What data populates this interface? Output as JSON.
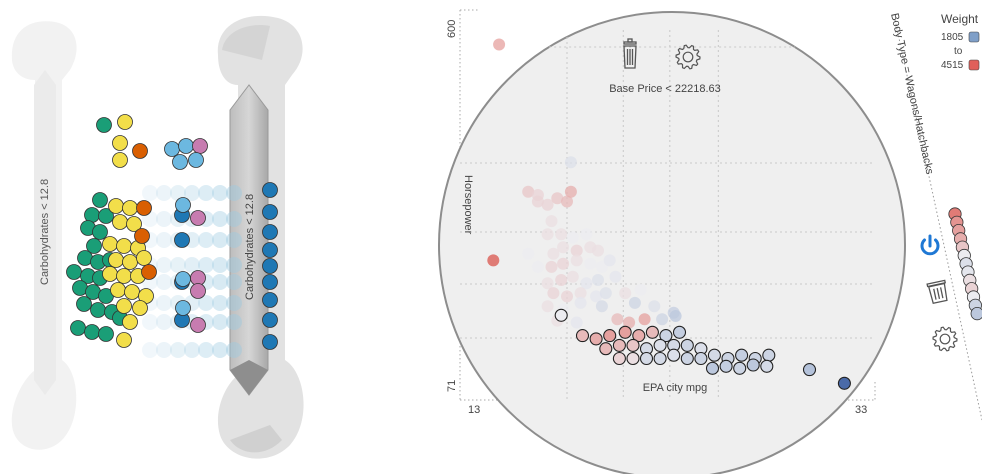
{
  "left_panel": {
    "filter_label": "Carbohydrates < 12.8",
    "ghost_label": "Carbohydrates < 12.8",
    "group_colors": {
      "green": "#1a9e77",
      "yellow": "#f2de4a",
      "orange": "#d95f02",
      "light_blue": "#6cb8e0",
      "pink": "#c77cb0",
      "blue": "#1f78b4"
    }
  },
  "scatter": {
    "x_min_label": "13",
    "x_max_label": "33",
    "y_max_label": "600",
    "y_min_label": "71",
    "x_axis_label": "EPA city mpg",
    "y_axis_label": "Horsepower",
    "filter_text": "Base Price < 22218.63",
    "icons": [
      "trash-icon",
      "gear-icon"
    ]
  },
  "legend": {
    "title": "Weight",
    "min_label": "1805",
    "to_label": "to",
    "max_label": "4515",
    "min_color": "#7f9fc8",
    "max_color": "#e0605a"
  },
  "right_panel": {
    "filter_label": "Body Type = Wagons/Hatchbacks",
    "icons": [
      "power-icon",
      "trash-icon",
      "gear-icon"
    ]
  },
  "chart_data": {
    "type": "scatter",
    "xlabel": "EPA city mpg",
    "ylabel": "Horsepower",
    "xlim": [
      13,
      33
    ],
    "ylim": [
      71,
      600
    ],
    "points": [
      {
        "x": 14.5,
        "y": 590,
        "w": 0.8
      },
      {
        "x": 14.2,
        "y": 260,
        "w": 1.0
      },
      {
        "x": 16,
        "y": 365,
        "w": 0.65
      },
      {
        "x": 16.5,
        "y": 360,
        "w": 0.6
      },
      {
        "x": 16.5,
        "y": 350,
        "w": 0.6
      },
      {
        "x": 17,
        "y": 345,
        "w": 0.6
      },
      {
        "x": 17.5,
        "y": 355,
        "w": 0.65
      },
      {
        "x": 18,
        "y": 350,
        "w": 0.7
      },
      {
        "x": 18.2,
        "y": 365,
        "w": 0.75
      },
      {
        "x": 17.2,
        "y": 320,
        "w": 0.55
      },
      {
        "x": 18.2,
        "y": 410,
        "w": 0.4
      },
      {
        "x": 17,
        "y": 300,
        "w": 0.55
      },
      {
        "x": 17.7,
        "y": 300,
        "w": 0.55
      },
      {
        "x": 18.3,
        "y": 295,
        "w": 0.5
      },
      {
        "x": 19,
        "y": 300,
        "w": 0.5
      },
      {
        "x": 16,
        "y": 270,
        "w": 0.5
      },
      {
        "x": 17.3,
        "y": 270,
        "w": 0.55
      },
      {
        "x": 17.8,
        "y": 280,
        "w": 0.55
      },
      {
        "x": 18.5,
        "y": 275,
        "w": 0.6
      },
      {
        "x": 19.2,
        "y": 280,
        "w": 0.55
      },
      {
        "x": 19.6,
        "y": 275,
        "w": 0.55
      },
      {
        "x": 16.5,
        "y": 250,
        "w": 0.5
      },
      {
        "x": 17.2,
        "y": 250,
        "w": 0.6
      },
      {
        "x": 17.8,
        "y": 255,
        "w": 0.6
      },
      {
        "x": 18.5,
        "y": 260,
        "w": 0.55
      },
      {
        "x": 19.2,
        "y": 255,
        "w": 0.5
      },
      {
        "x": 19.8,
        "y": 250,
        "w": 0.5
      },
      {
        "x": 20.2,
        "y": 260,
        "w": 0.45
      },
      {
        "x": 17,
        "y": 225,
        "w": 0.55
      },
      {
        "x": 17.7,
        "y": 230,
        "w": 0.6
      },
      {
        "x": 18.3,
        "y": 235,
        "w": 0.55
      },
      {
        "x": 19,
        "y": 225,
        "w": 0.45
      },
      {
        "x": 19.6,
        "y": 230,
        "w": 0.4
      },
      {
        "x": 20.5,
        "y": 235,
        "w": 0.45
      },
      {
        "x": 17.3,
        "y": 210,
        "w": 0.6
      },
      {
        "x": 18,
        "y": 205,
        "w": 0.6
      },
      {
        "x": 18.7,
        "y": 210,
        "w": 0.55
      },
      {
        "x": 19.5,
        "y": 205,
        "w": 0.45
      },
      {
        "x": 20,
        "y": 210,
        "w": 0.4
      },
      {
        "x": 21,
        "y": 210,
        "w": 0.55
      },
      {
        "x": 21.8,
        "y": 215,
        "w": 0.5
      },
      {
        "x": 17,
        "y": 190,
        "w": 0.55
      },
      {
        "x": 17.8,
        "y": 185,
        "w": 0.5
      },
      {
        "x": 18.7,
        "y": 195,
        "w": 0.45
      },
      {
        "x": 19.8,
        "y": 190,
        "w": 0.35
      },
      {
        "x": 21.5,
        "y": 195,
        "w": 0.3
      },
      {
        "x": 22.5,
        "y": 190,
        "w": 0.4
      },
      {
        "x": 23.5,
        "y": 180,
        "w": 0.25
      },
      {
        "x": 17.5,
        "y": 168,
        "w": 0.55
      },
      {
        "x": 18.5,
        "y": 165,
        "w": 0.45
      },
      {
        "x": 20.6,
        "y": 170,
        "w": 0.7
      },
      {
        "x": 21.2,
        "y": 165,
        "w": 0.75
      },
      {
        "x": 22,
        "y": 170,
        "w": 0.8
      },
      {
        "x": 22.9,
        "y": 170,
        "w": 0.3
      },
      {
        "x": 23.6,
        "y": 175,
        "w": 0.2
      },
      {
        "x": 18.8,
        "y": 145,
        "w": 0.7
      },
      {
        "x": 19.5,
        "y": 140,
        "w": 0.75
      },
      {
        "x": 20.2,
        "y": 145,
        "w": 0.8
      },
      {
        "x": 21,
        "y": 150,
        "w": 0.8
      },
      {
        "x": 21.7,
        "y": 145,
        "w": 0.75
      },
      {
        "x": 22.4,
        "y": 150,
        "w": 0.7
      },
      {
        "x": 23.1,
        "y": 145,
        "w": 0.3
      },
      {
        "x": 23.8,
        "y": 150,
        "w": 0.25
      },
      {
        "x": 20,
        "y": 125,
        "w": 0.7
      },
      {
        "x": 20.7,
        "y": 130,
        "w": 0.7
      },
      {
        "x": 21.4,
        "y": 130,
        "w": 0.65
      },
      {
        "x": 22.1,
        "y": 125,
        "w": 0.35
      },
      {
        "x": 22.8,
        "y": 130,
        "w": 0.4
      },
      {
        "x": 23.5,
        "y": 130,
        "w": 0.35
      },
      {
        "x": 24.2,
        "y": 130,
        "w": 0.3
      },
      {
        "x": 24.9,
        "y": 125,
        "w": 0.4
      },
      {
        "x": 20.7,
        "y": 110,
        "w": 0.6
      },
      {
        "x": 21.4,
        "y": 110,
        "w": 0.55
      },
      {
        "x": 22.1,
        "y": 110,
        "w": 0.35
      },
      {
        "x": 22.8,
        "y": 110,
        "w": 0.35
      },
      {
        "x": 23.5,
        "y": 115,
        "w": 0.4
      },
      {
        "x": 24.2,
        "y": 110,
        "w": 0.3
      },
      {
        "x": 24.9,
        "y": 110,
        "w": 0.3
      },
      {
        "x": 25.6,
        "y": 115,
        "w": 0.35
      },
      {
        "x": 26.3,
        "y": 110,
        "w": 0.3
      },
      {
        "x": 27,
        "y": 115,
        "w": 0.25
      },
      {
        "x": 27.7,
        "y": 110,
        "w": 0.3
      },
      {
        "x": 28.4,
        "y": 115,
        "w": 0.3
      },
      {
        "x": 25.5,
        "y": 95,
        "w": 0.2
      },
      {
        "x": 26.2,
        "y": 98,
        "w": 0.25
      },
      {
        "x": 26.9,
        "y": 95,
        "w": 0.3
      },
      {
        "x": 27.6,
        "y": 100,
        "w": 0.2
      },
      {
        "x": 28.3,
        "y": 98,
        "w": 0.35
      },
      {
        "x": 30.5,
        "y": 93,
        "w": 0.15
      },
      {
        "x": 32.3,
        "y": 72,
        "w": 0.0
      },
      {
        "x": 17.7,
        "y": 176,
        "w": 0.5
      }
    ]
  }
}
